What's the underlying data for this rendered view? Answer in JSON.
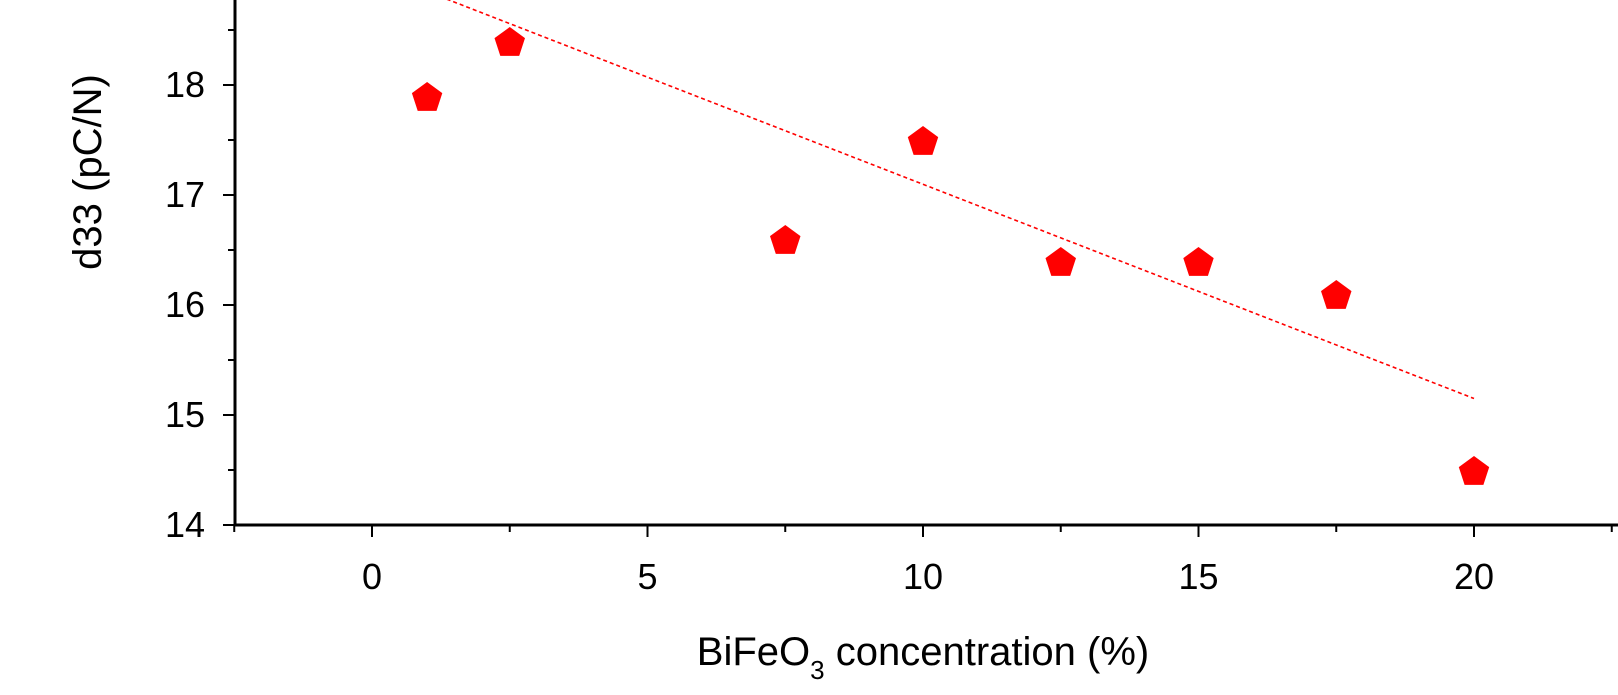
{
  "chart_data": {
    "type": "scatter",
    "xlabel": {
      "main": "BiFeO",
      "subscript": "3",
      "rest": " concentration (%)"
    },
    "ylabel": "d33 (pC/N)",
    "xlim": [
      -2.5,
      22.5
    ],
    "ylim": [
      14,
      18.8
    ],
    "x_ticks": [
      0,
      5,
      10,
      15,
      20
    ],
    "y_ticks": [
      14,
      15,
      16,
      17,
      18
    ],
    "x_tick_labels": [
      "0",
      "5",
      "10",
      "15",
      "20"
    ],
    "y_tick_labels": [
      "14",
      "15",
      "16",
      "17",
      "18"
    ],
    "grid": false,
    "series": [
      {
        "marker": "pentagon",
        "color": "#ff0000",
        "points": [
          {
            "x": 1,
            "y": 17.9
          },
          {
            "x": 2.5,
            "y": 18.4
          },
          {
            "x": 7.5,
            "y": 16.6
          },
          {
            "x": 10,
            "y": 17.5
          },
          {
            "x": 12.5,
            "y": 16.4
          },
          {
            "x": 15,
            "y": 16.4
          },
          {
            "x": 17.5,
            "y": 16.1
          },
          {
            "x": 20,
            "y": 14.5
          }
        ]
      }
    ],
    "fit_line": {
      "style": "dashed",
      "color": "#ff0000",
      "points": [
        {
          "x": 1,
          "y": 18.85
        },
        {
          "x": 20,
          "y": 15.15
        }
      ]
    }
  }
}
